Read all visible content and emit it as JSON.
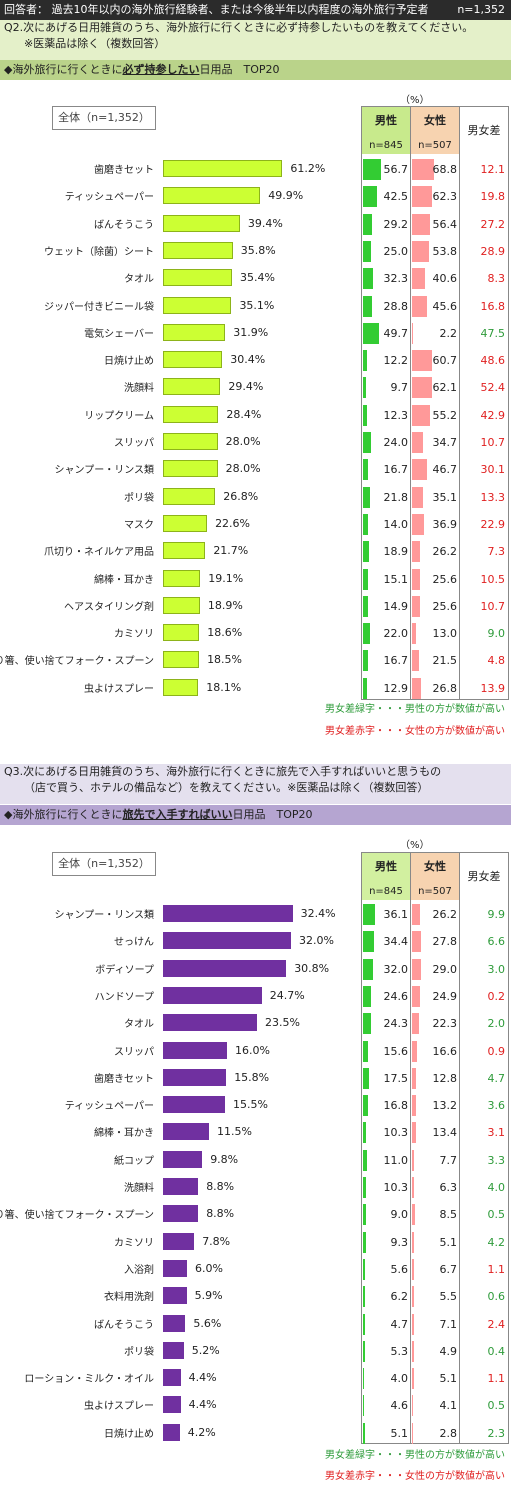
{
  "header": {
    "respondent": "回答者： 過去10年以内の海外旅行経験者、または今後半年以内程度の海外旅行予定者",
    "n": "n=1,352"
  },
  "sections": [
    {
      "question_line1": "Q2.次にあげる日用雑貨のうち、海外旅行に行くときに必ず持参したいものを教えてください。",
      "question_line2": "※医薬品は除く（複数回答）",
      "title_prefix": "◆海外旅行に行くときに",
      "title_emph": "必ず持参したい",
      "title_suffix": "日用品　TOP20",
      "unit": "（%）",
      "total_label": "全体（n=1,352）",
      "male_label": "男性",
      "male_n": "n=845",
      "female_label": "女性",
      "female_n": "n=507",
      "diff_label": "男女差",
      "note_green": "男女差緑字・・・男性の方が数値が高い",
      "note_red": "男女差赤字・・・女性の方が数値が高い"
    },
    {
      "question_line1": "Q3.次にあげる日用雑貨のうち、海外旅行に行くときに旅先で入手すればいいと思うもの",
      "question_line2": "（店で買う、ホテルの備品など）を教えてください。※医薬品は除く（複数回答）",
      "title_prefix": "◆海外旅行に行くときに",
      "title_emph": "旅先で入手すればいい",
      "title_suffix": "日用品　TOP20",
      "unit": "（%）",
      "total_label": "全体（n=1,352）",
      "male_label": "男性",
      "male_n": "n=845",
      "female_label": "女性",
      "female_n": "n=507",
      "diff_label": "男女差",
      "note_green": "男女差緑字・・・男性の方が数値が高い",
      "note_red": "男女差赤字・・・女性の方が数値が高い"
    }
  ],
  "chart_data": [
    {
      "type": "bar",
      "orientation": "horizontal",
      "categories": [
        "歯磨きセット",
        "ティッシュペーパー",
        "ばんそうこう",
        "ウェット（除菌）シート",
        "タオル",
        "ジッパー付きビニール袋",
        "電気シェーバー",
        "日焼け止め",
        "洗顔料",
        "リップクリーム",
        "スリッパ",
        "シャンプー・リンス類",
        "ポリ袋",
        "マスク",
        "爪切り・ネイルケア用品",
        "綿棒・耳かき",
        "ヘアスタイリング剤",
        "カミソリ",
        "割り箸、使い捨てフォーク・スプーン",
        "虫よけスプレー"
      ],
      "series": [
        {
          "name": "全体（n=1,352）",
          "values": [
            61.2,
            49.9,
            39.4,
            35.8,
            35.4,
            35.1,
            31.9,
            30.4,
            29.4,
            28.4,
            28.0,
            28.0,
            26.8,
            22.6,
            21.7,
            19.1,
            18.9,
            18.6,
            18.5,
            18.1
          ]
        },
        {
          "name": "男性",
          "values": [
            56.7,
            42.5,
            29.2,
            25.0,
            32.3,
            28.8,
            49.7,
            12.2,
            9.7,
            12.3,
            24.0,
            16.7,
            21.8,
            14.0,
            18.9,
            15.1,
            14.9,
            22.0,
            16.7,
            12.9
          ]
        },
        {
          "name": "女性",
          "values": [
            68.8,
            62.3,
            56.4,
            53.8,
            40.6,
            45.6,
            2.2,
            60.7,
            62.1,
            55.2,
            34.7,
            46.7,
            35.1,
            36.9,
            26.2,
            25.6,
            25.6,
            13.0,
            21.5,
            26.8
          ]
        },
        {
          "name": "男女差",
          "values": [
            12.1,
            19.8,
            27.2,
            28.9,
            8.3,
            16.8,
            47.5,
            48.6,
            52.4,
            42.9,
            10.7,
            30.1,
            13.3,
            22.9,
            7.3,
            10.5,
            10.7,
            9.0,
            4.8,
            13.9
          ]
        }
      ],
      "diff_male_higher": [
        false,
        false,
        false,
        false,
        false,
        false,
        true,
        false,
        false,
        false,
        false,
        false,
        false,
        false,
        false,
        false,
        false,
        true,
        false,
        false
      ],
      "colors": {
        "total": "#ccff33",
        "male": "#33cc33",
        "female": "#ff9999",
        "diff_female": "#e02020",
        "diff_male": "#2e9b3a"
      }
    },
    {
      "type": "bar",
      "orientation": "horizontal",
      "categories": [
        "シャンプー・リンス類",
        "せっけん",
        "ボディソープ",
        "ハンドソープ",
        "タオル",
        "スリッパ",
        "歯磨きセット",
        "ティッシュペーパー",
        "綿棒・耳かき",
        "紙コップ",
        "洗顔料",
        "割り箸、使い捨てフォーク・スプーン",
        "カミソリ",
        "入浴剤",
        "衣料用洗剤",
        "ばんそうこう",
        "ポリ袋",
        "ローション・ミルク・オイル",
        "虫よけスプレー",
        "日焼け止め"
      ],
      "series": [
        {
          "name": "全体（n=1,352）",
          "values": [
            32.4,
            32.0,
            30.8,
            24.7,
            23.5,
            16.0,
            15.8,
            15.5,
            11.5,
            9.8,
            8.8,
            8.8,
            7.8,
            6.0,
            5.9,
            5.6,
            5.2,
            4.4,
            4.4,
            4.2
          ]
        },
        {
          "name": "男性",
          "values": [
            36.1,
            34.4,
            32.0,
            24.6,
            24.3,
            15.6,
            17.5,
            16.8,
            10.3,
            11.0,
            10.3,
            9.0,
            9.3,
            5.6,
            6.2,
            4.7,
            5.3,
            4.0,
            4.6,
            5.1
          ]
        },
        {
          "name": "女性",
          "values": [
            26.2,
            27.8,
            29.0,
            24.9,
            22.3,
            16.6,
            12.8,
            13.2,
            13.4,
            7.7,
            6.3,
            8.5,
            5.1,
            6.7,
            5.5,
            7.1,
            4.9,
            5.1,
            4.1,
            2.8
          ]
        },
        {
          "name": "男女差",
          "values": [
            9.9,
            6.6,
            3.0,
            0.2,
            2.0,
            0.9,
            4.7,
            3.6,
            3.1,
            3.3,
            4.0,
            0.5,
            4.2,
            1.1,
            0.6,
            2.4,
            0.4,
            1.1,
            0.5,
            2.3
          ]
        }
      ],
      "diff_male_higher": [
        true,
        true,
        true,
        false,
        true,
        false,
        true,
        true,
        false,
        true,
        true,
        true,
        true,
        false,
        true,
        false,
        true,
        false,
        true,
        true
      ],
      "colors": {
        "total": "#7030a0",
        "male": "#33cc33",
        "female": "#ff9999",
        "diff_female": "#e02020",
        "diff_male": "#2e9b3a"
      }
    }
  ]
}
